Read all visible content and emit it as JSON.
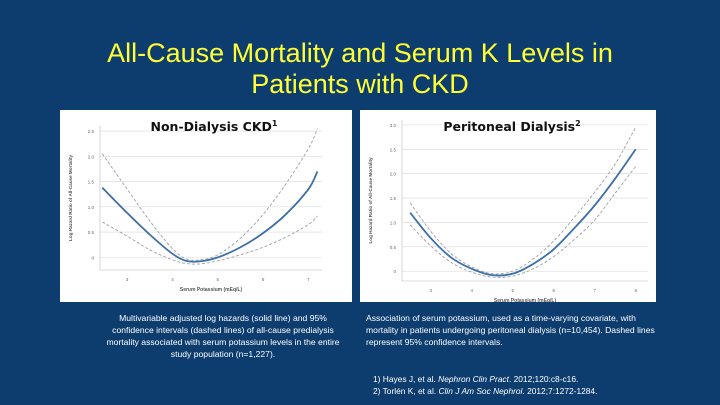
{
  "slide": {
    "title_line1": "All-Cause Mortality and Serum K Levels in",
    "title_line2": "Patients with CKD"
  },
  "chart_data": [
    {
      "type": "line",
      "title": "Non-Dialysis CKD",
      "title_sup": "1",
      "xlabel": "Serum Potassium (mEq/L)",
      "ylabel": "Log Hazard Ratio of All-Cause Mortality",
      "xlim": [
        2.4,
        7.3
      ],
      "ylim": [
        -0.25,
        2.6
      ],
      "xticks": [
        "3",
        "4",
        "5",
        "6",
        "7"
      ],
      "yticks": [
        "0",
        "0.5",
        "1.0",
        "1.5",
        "2.0",
        "2.5"
      ],
      "grid": true,
      "series": [
        {
          "style": "solid",
          "x": [
            2.45,
            3.0,
            3.5,
            4.0,
            4.3,
            4.6,
            5.0,
            5.5,
            6.0,
            6.5,
            7.0,
            7.2
          ],
          "y": [
            1.38,
            0.88,
            0.45,
            0.07,
            -0.07,
            -0.08,
            0.0,
            0.2,
            0.48,
            0.85,
            1.35,
            1.7
          ]
        },
        {
          "style": "dashed",
          "x": [
            2.45,
            3.0,
            3.5,
            4.0,
            4.3,
            4.6,
            5.0,
            5.5,
            6.0,
            6.5,
            7.0,
            7.2
          ],
          "y": [
            2.05,
            1.35,
            0.72,
            0.17,
            -0.03,
            -0.05,
            0.05,
            0.38,
            0.85,
            1.45,
            2.15,
            2.55
          ]
        },
        {
          "style": "dashed",
          "x": [
            2.45,
            3.0,
            3.5,
            4.0,
            4.3,
            4.6,
            5.0,
            5.5,
            6.0,
            6.5,
            7.0,
            7.2
          ],
          "y": [
            0.7,
            0.42,
            0.15,
            -0.05,
            -0.12,
            -0.13,
            -0.07,
            0.05,
            0.2,
            0.4,
            0.65,
            0.82
          ]
        }
      ],
      "caption": "Multivariable adjusted log hazards (solid line) and 95% confidence intervals (dashed lines) of all-cause predialysis mortality associated with serum potassium levels in the entire study population (n=1,227)."
    },
    {
      "type": "line",
      "title": "Peritoneal Dialysis",
      "title_sup": "2",
      "xlabel": "Serum Potassium (mEq/L)",
      "ylabel": "Log Hazard Ratio of All-Cause Mortality",
      "xlim": [
        2.3,
        8.3
      ],
      "ylim": [
        -0.2,
        3.1
      ],
      "xticks": [
        "3",
        "4",
        "5",
        "6",
        "7",
        "8"
      ],
      "yticks": [
        "0",
        "0.5",
        "1.0",
        "1.5",
        "2.0",
        "2.5",
        "3.0"
      ],
      "grid": true,
      "series": [
        {
          "style": "solid",
          "x": [
            2.5,
            3.0,
            3.5,
            4.0,
            4.5,
            5.0,
            5.5,
            6.0,
            6.5,
            7.0,
            7.5,
            8.0
          ],
          "y": [
            1.2,
            0.68,
            0.28,
            0.05,
            -0.08,
            -0.05,
            0.15,
            0.45,
            0.88,
            1.35,
            1.9,
            2.5
          ]
        },
        {
          "style": "dashed",
          "x": [
            2.5,
            3.0,
            3.5,
            4.0,
            4.5,
            5.0,
            5.5,
            6.0,
            6.5,
            7.0,
            7.5,
            8.0
          ],
          "y": [
            1.4,
            0.82,
            0.36,
            0.09,
            -0.05,
            0.0,
            0.25,
            0.62,
            1.1,
            1.62,
            2.2,
            2.95
          ]
        },
        {
          "style": "dashed",
          "x": [
            2.5,
            3.0,
            3.5,
            4.0,
            4.5,
            5.0,
            5.5,
            6.0,
            6.5,
            7.0,
            7.5,
            8.0
          ],
          "y": [
            0.95,
            0.52,
            0.18,
            -0.02,
            -0.12,
            -0.1,
            0.05,
            0.3,
            0.65,
            1.05,
            1.6,
            2.15
          ]
        }
      ],
      "caption": "Association of serum potassium, used as a time-varying covariate, with mortality in patients undergoing peritoneal dialysis (n=10,454). Dashed lines represent 95% confidence intervals."
    }
  ],
  "references": {
    "ref1_num": "1)",
    "ref1_pre": " Hayes J, et al. ",
    "ref1_journal": "Nephron Clin Pract",
    "ref1_post": ". 2012;120:c8-c16.",
    "ref2_pre": "2) Torlén K, et al. ",
    "ref2_journal": "Clin J Am Soc Nephrol",
    "ref2_post": ". 2012;7:1272-1284."
  },
  "colors": {
    "background": "#0d3d6e",
    "title": "#ffff33",
    "line": "#3d6fa8",
    "dashed": "#9aa0a8"
  }
}
